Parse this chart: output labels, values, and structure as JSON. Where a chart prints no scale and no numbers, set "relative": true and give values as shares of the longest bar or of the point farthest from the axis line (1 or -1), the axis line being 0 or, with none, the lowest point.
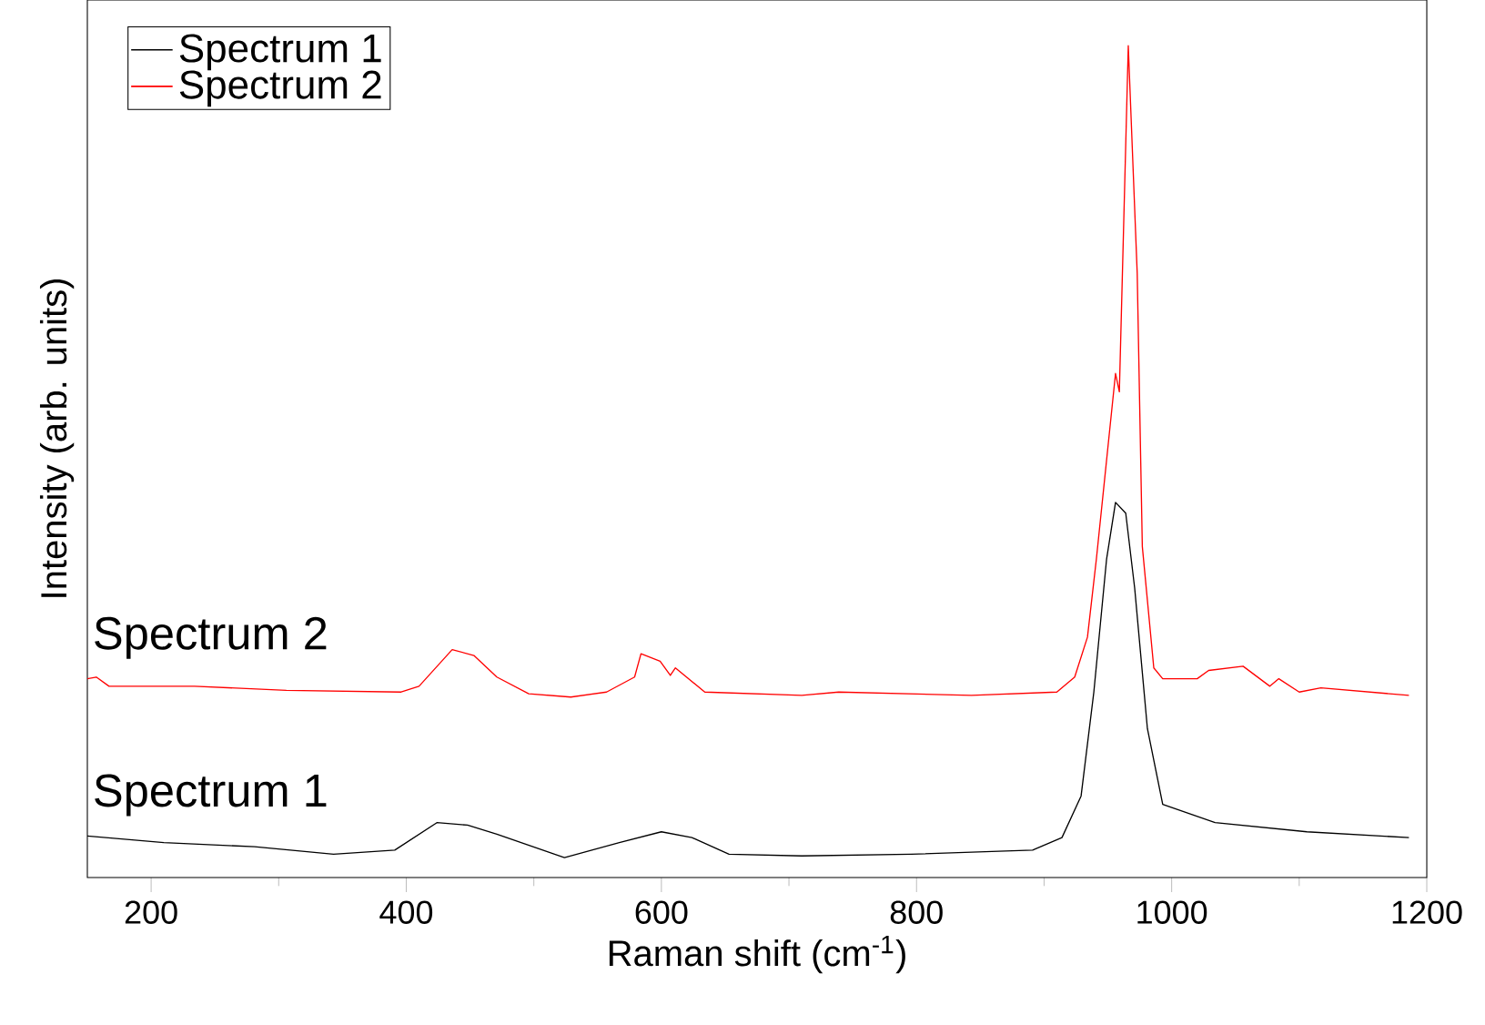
{
  "chart_data": {
    "type": "line",
    "relative": true,
    "xlabel": "Raman shift (cm$^{-1}$)",
    "ylabel": "Intensity (arb. units)",
    "xlim": [
      150,
      1200
    ],
    "xticks": [
      200,
      400,
      600,
      800,
      1000,
      1200
    ],
    "legend": "top left",
    "marker": "none",
    "line_style": "solid",
    "grid": false,
    "annotations": [
      "Spectrum 2",
      "Spectrum 1"
    ],
    "series": [
      {
        "name": "Spectrum 1",
        "color": "#000000",
        "x": [
          150,
          210,
          281,
          343,
          391,
          424,
          448,
          471,
          524,
          567,
          600,
          624,
          653,
          710,
          796,
          891,
          914,
          929,
          939,
          949,
          956,
          964,
          971,
          981,
          993,
          1034,
          1106,
          1186
        ],
        "values": [
          0.05,
          0.042,
          0.037,
          0.028,
          0.033,
          0.066,
          0.063,
          0.052,
          0.024,
          0.042,
          0.055,
          0.048,
          0.028,
          0.026,
          0.028,
          0.033,
          0.048,
          0.098,
          0.223,
          0.383,
          0.451,
          0.438,
          0.348,
          0.179,
          0.088,
          0.066,
          0.055,
          0.048
        ]
      },
      {
        "name": "Spectrum 2",
        "color": "#ff0000",
        "x": [
          150,
          157,
          167,
          234,
          306,
          396,
          410,
          436,
          453,
          471,
          496,
          529,
          557,
          579,
          584,
          599,
          607,
          611,
          634,
          710,
          739,
          843,
          910,
          924,
          934,
          941,
          956,
          959,
          966,
          973,
          977,
          986,
          993,
          1020,
          1029,
          1056,
          1077,
          1084,
          1100,
          1117,
          1186
        ],
        "values": [
          0.239,
          0.241,
          0.23,
          0.23,
          0.225,
          0.223,
          0.23,
          0.274,
          0.267,
          0.241,
          0.221,
          0.217,
          0.223,
          0.241,
          0.269,
          0.26,
          0.243,
          0.252,
          0.223,
          0.219,
          0.223,
          0.219,
          0.223,
          0.241,
          0.289,
          0.383,
          0.606,
          0.584,
          1.0,
          0.726,
          0.398,
          0.252,
          0.239,
          0.239,
          0.249,
          0.254,
          0.23,
          0.239,
          0.223,
          0.228,
          0.219
        ]
      }
    ]
  }
}
